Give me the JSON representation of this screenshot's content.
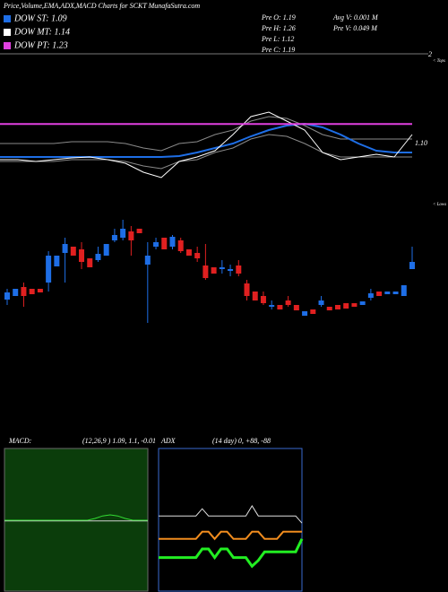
{
  "header": {
    "title": "Price,Volume,EMA,ADX,MACD Charts for SCKT MunafaSutra.com",
    "stats": [
      "Pre  O: 1.19",
      "Avg V: 0.001 M",
      "Pre  H: 1.26",
      "Pre  V: 0.049 M",
      "Pre  L: 1.12",
      "Pre  C: 1.19"
    ],
    "marks": {
      "top": "2",
      "tops": "< Tops",
      "lows": "< Lows"
    }
  },
  "chart_data": [
    {
      "type": "line",
      "ylim": [
        0.68,
        1.7
      ],
      "legend": true,
      "annotations": [
        {
          "value": 1.1,
          "label": "1.10"
        }
      ],
      "series": [
        {
          "color": "#8a8a8a",
          "values": [
            1.1,
            1.1,
            1.1,
            1.1,
            1.112,
            1.112,
            1.112,
            1.1,
            1.07,
            1.052,
            1.1,
            1.112,
            1.16,
            1.19,
            1.25,
            1.28,
            1.268,
            1.22,
            1.16,
            1.13,
            1.13,
            1.13,
            1.13,
            1.13
          ]
        },
        {
          "color": "#8a8a8a",
          "values": [
            0.98,
            0.98,
            0.98,
            0.98,
            0.992,
            0.992,
            0.992,
            0.98,
            0.95,
            0.932,
            0.98,
            0.992,
            1.04,
            1.07,
            1.13,
            1.16,
            1.148,
            1.1,
            1.04,
            1.01,
            1.01,
            1.01,
            1.01,
            1.01
          ]
        },
        {
          "name": "DOW ST: 1.09",
          "color": "#1e6ee6",
          "width": 2,
          "values": [
            1.01,
            1.01,
            1.01,
            1.01,
            1.01,
            1.01,
            1.01,
            1.01,
            1.01,
            1.01,
            1.016,
            1.04,
            1.07,
            1.1,
            1.148,
            1.19,
            1.22,
            1.232,
            1.208,
            1.16,
            1.1,
            1.052,
            1.04,
            1.04
          ]
        },
        {
          "name": "DOW MT: 1.14",
          "color": "#ffffff",
          "values": [
            0.992,
            0.992,
            0.98,
            0.992,
            1.004,
            1.01,
            0.992,
            0.968,
            0.908,
            0.872,
            0.98,
            1.01,
            1.052,
            1.16,
            1.28,
            1.31,
            1.25,
            1.19,
            1.04,
            0.992,
            1.01,
            1.028,
            1.01,
            1.16
          ]
        },
        {
          "name": "DOW PT: 1.23",
          "color": "#e040e0",
          "width": 2,
          "values": [
            1.23,
            1.23,
            1.23,
            1.23,
            1.23,
            1.23,
            1.23,
            1.23,
            1.23,
            1.23,
            1.23,
            1.23,
            1.23,
            1.23,
            1.23,
            1.23,
            1.23,
            1.23,
            1.23,
            1.23,
            1.23,
            1.23,
            1.23,
            1.23
          ]
        }
      ]
    },
    {
      "type": "candlestick",
      "ylim": [
        0.82,
        1.34
      ],
      "up_color": "#1e6ee6",
      "down_color": "#e02020",
      "open": [
        0.964,
        0.98,
        1.02,
        1.012,
        1.012,
        1.04,
        1.112,
        1.172,
        1.2,
        1.188,
        1.148,
        1.14,
        1.16,
        1.228,
        1.24,
        1.268,
        1.28,
        1.12,
        1.2,
        1.24,
        1.2,
        1.228,
        1.188,
        1.172,
        1.116,
        1.108,
        1.1,
        1.092,
        1.116,
        1.036,
        1.0,
        0.98,
        0.932,
        0.94,
        0.96,
        0.94,
        0.892,
        0.92,
        0.94,
        0.932,
        0.94,
        0.948,
        0.948,
        0.94,
        0.972,
        1.0,
        0.988,
        0.988,
        0.98,
        1.1
      ],
      "high": [
        1.012,
        1.012,
        1.04,
        1.012,
        1.012,
        1.18,
        1.16,
        1.24,
        1.2,
        1.22,
        1.148,
        1.2,
        1.212,
        1.28,
        1.32,
        1.292,
        1.28,
        1.22,
        1.24,
        1.24,
        1.252,
        1.24,
        1.188,
        1.2,
        1.212,
        1.108,
        1.14,
        1.12,
        1.14,
        1.052,
        1.0,
        1.0,
        0.96,
        0.94,
        0.98,
        0.94,
        0.912,
        0.92,
        0.98,
        0.932,
        0.94,
        0.948,
        0.948,
        0.956,
        1.012,
        1.0,
        1.0,
        1.0,
        1.028,
        1.2
      ],
      "low": [
        0.94,
        0.98,
        0.932,
        0.988,
        0.996,
        1.0,
        1.112,
        1.04,
        1.16,
        1.1,
        1.108,
        1.132,
        1.16,
        1.22,
        1.228,
        1.16,
        1.26,
        0.86,
        1.188,
        1.188,
        1.188,
        1.172,
        1.16,
        1.132,
        1.052,
        1.08,
        1.08,
        1.068,
        1.068,
        0.96,
        0.96,
        0.94,
        0.92,
        0.92,
        0.932,
        0.916,
        0.892,
        0.9,
        0.932,
        0.916,
        0.92,
        0.924,
        0.932,
        0.94,
        0.96,
        0.98,
        0.988,
        0.988,
        0.98,
        1.1
      ],
      "close": [
        0.996,
        1.012,
        0.98,
        0.988,
        0.996,
        1.16,
        1.16,
        1.212,
        1.16,
        1.132,
        1.108,
        1.168,
        1.212,
        1.252,
        1.28,
        1.228,
        1.26,
        1.16,
        1.22,
        1.188,
        1.244,
        1.18,
        1.16,
        1.148,
        1.06,
        1.08,
        1.108,
        1.1,
        1.08,
        0.98,
        0.96,
        0.948,
        0.94,
        0.92,
        0.94,
        0.916,
        0.912,
        0.9,
        0.96,
        0.916,
        0.92,
        0.924,
        0.932,
        0.956,
        0.992,
        0.98,
        1.0,
        1.0,
        1.028,
        1.132
      ]
    },
    {
      "type": "line",
      "title": "MACD:",
      "subtitle": "(12,26,9 ) 1.09, 1.1, -0.01",
      "ylim": [
        0.9,
        1.3
      ],
      "background": "#0b3d0b",
      "border": "#6a6a6a",
      "series": [
        {
          "color": "#cfcfcf",
          "values": [
            1.098,
            1.098,
            1.098,
            1.098,
            1.098,
            1.098,
            1.098,
            1.098,
            1.098,
            1.098,
            1.098,
            1.098,
            1.098,
            1.098,
            1.098,
            1.098,
            1.098,
            1.098,
            1.098,
            1.098
          ]
        },
        {
          "color": "#33dd33",
          "values": [
            1.1,
            1.1,
            1.1,
            1.1,
            1.1,
            1.1,
            1.1,
            1.1,
            1.1,
            1.1,
            1.1,
            1.1,
            1.105,
            1.112,
            1.115,
            1.112,
            1.105,
            1.1,
            1.1,
            1.1
          ]
        }
      ]
    },
    {
      "type": "line",
      "title": "ADX",
      "subtitle": "(14  day) 0, +88, -88",
      "ylim": [
        0,
        100
      ],
      "background": "#000000",
      "border": "#3a6ad0",
      "series": [
        {
          "color": "#e0e0e0",
          "values": [
            53,
            53,
            53,
            53,
            53,
            53,
            53,
            58,
            53,
            53,
            53,
            53,
            53,
            53,
            53,
            60,
            53,
            53,
            53,
            53,
            53,
            53,
            53,
            48
          ]
        },
        {
          "color": "#f08c1e",
          "width": 2,
          "values": [
            37,
            37,
            37,
            37,
            37,
            37,
            37,
            42,
            42,
            37,
            42,
            42,
            37,
            37,
            37,
            42,
            42,
            37,
            37,
            37,
            42,
            42,
            42,
            42
          ]
        },
        {
          "color": "#22ee22",
          "width": 3,
          "values": [
            24,
            24,
            24,
            24,
            24,
            24,
            24,
            30,
            30,
            24,
            30,
            30,
            24,
            24,
            24,
            18,
            22,
            28,
            28,
            28,
            28,
            28,
            28,
            37
          ]
        }
      ]
    }
  ]
}
